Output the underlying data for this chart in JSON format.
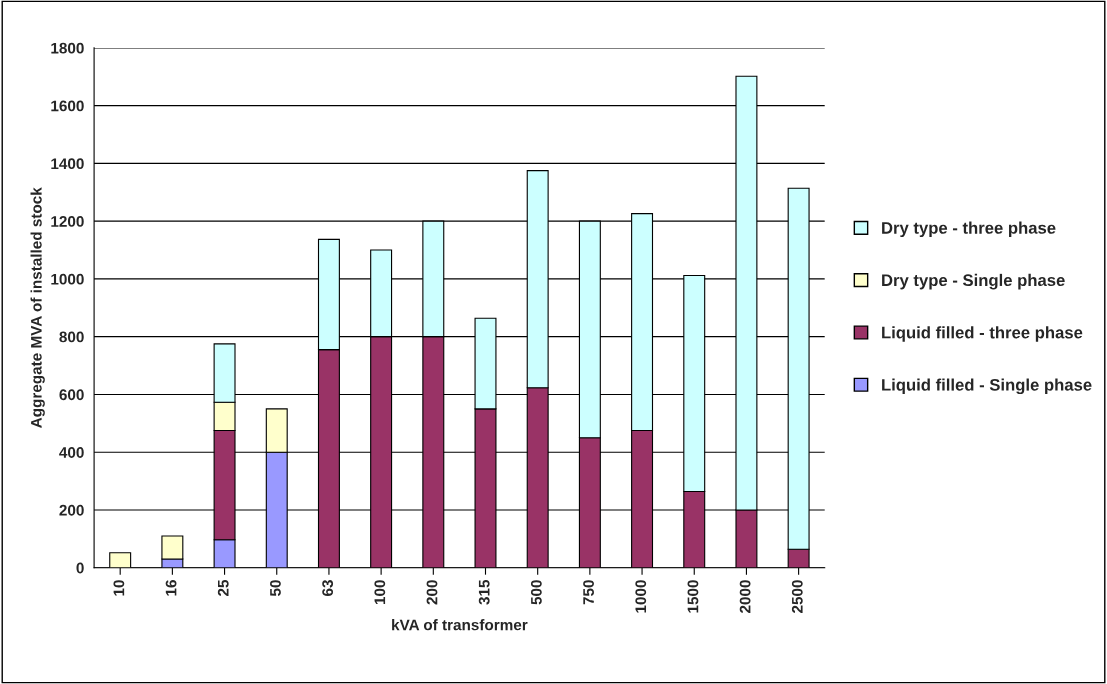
{
  "chart_data": {
    "type": "bar",
    "stacked": true,
    "xlabel": "kVA of transformer",
    "ylabel": "Aggregate MVA of installed stock",
    "categories": [
      "10",
      "16",
      "25",
      "50",
      "63",
      "100",
      "200",
      "315",
      "500",
      "750",
      "1000",
      "1500",
      "2000",
      "2500"
    ],
    "series": [
      {
        "name": "Liquid filled - Single phase",
        "color": "#9999ff",
        "values": [
          null,
          30,
          97,
          400,
          null,
          null,
          null,
          null,
          null,
          null,
          null,
          null,
          null,
          null
        ]
      },
      {
        "name": "Liquid filled - three phase",
        "color": "#993366",
        "values": [
          null,
          null,
          378,
          null,
          755,
          800,
          800,
          550,
          623,
          450,
          475,
          264,
          200,
          64
        ]
      },
      {
        "name": "Dry type - Single phase",
        "color": "#ffffcc",
        "values": [
          52,
          80,
          98,
          150,
          null,
          null,
          null,
          null,
          null,
          null,
          null,
          null,
          null,
          null
        ]
      },
      {
        "name": "Dry type - three phase",
        "color": "#ccffff",
        "values": [
          null,
          null,
          202,
          null,
          382,
          300,
          400,
          314,
          752,
          750,
          751,
          748,
          1502,
          1250
        ]
      }
    ],
    "ylim": [
      0,
      1800
    ],
    "yticks": [
      0,
      200,
      400,
      600,
      800,
      1000,
      1200,
      1400,
      1600,
      1800
    ],
    "grid": "y",
    "legend": "right"
  }
}
